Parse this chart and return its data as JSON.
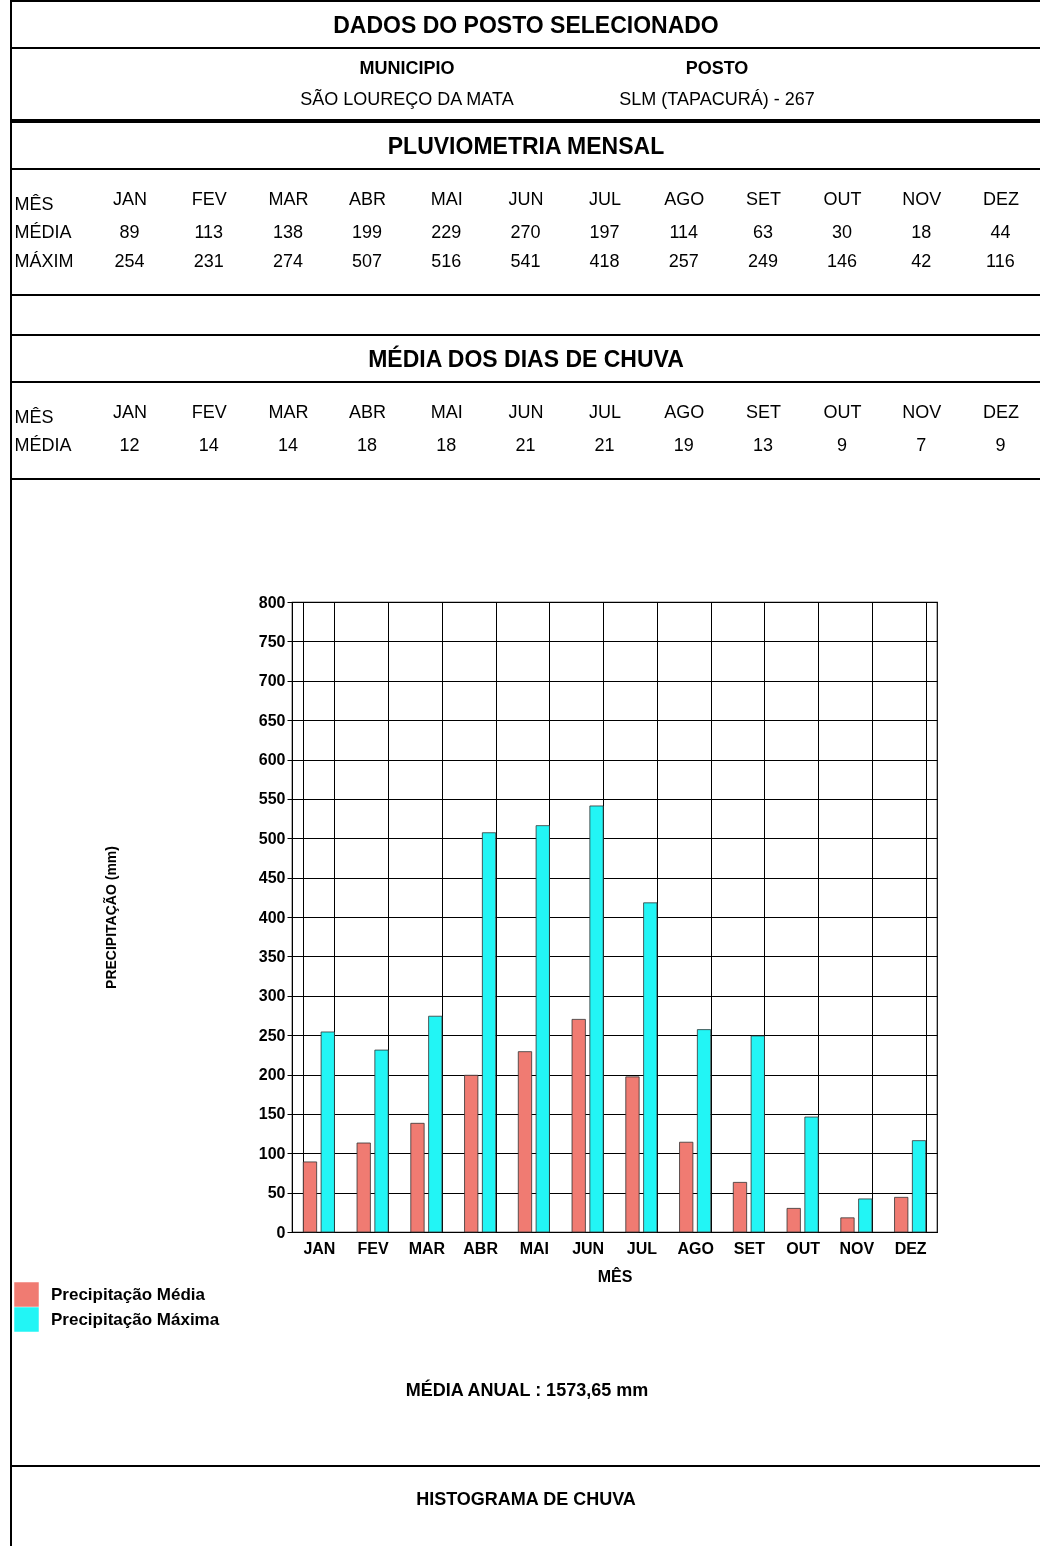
{
  "chart_data": [
    {
      "type": "other",
      "title": "DADOS DO POSTO SELECIONADO",
      "annotations": [
        "MUNICIPIO",
        "POSTO",
        "SÃO LOUREÇO DA MATA",
        "SLM (TAPACURÁ) - 267"
      ]
    },
    {
      "type": "other",
      "title": "PLUVIOMETRIA MENSAL",
      "xlabel": "MÊS",
      "categories": [
        "JAN",
        "FEV",
        "MAR",
        "ABR",
        "MAI",
        "JUN",
        "JUL",
        "AGO",
        "SET",
        "OUT",
        "NOV",
        "DEZ"
      ],
      "series": [
        {
          "name": "MÉDIA",
          "values": [
            89,
            113,
            138,
            199,
            229,
            270,
            197,
            114,
            63,
            30,
            18,
            44
          ]
        },
        {
          "name": "MÁXIM",
          "values": [
            254,
            231,
            274,
            507,
            516,
            541,
            418,
            257,
            249,
            146,
            42,
            116
          ]
        }
      ],
      "data_labels": true
    },
    {
      "type": "other",
      "title": "MÉDIA DOS DIAS DE CHUVA",
      "xlabel": "MÊS",
      "ylabel": "MÉDIA",
      "categories": [
        "JAN",
        "FEV",
        "MAR",
        "ABR",
        "MAI",
        "JUN",
        "JUL",
        "AGO",
        "SET",
        "OUT",
        "NOV",
        "DEZ"
      ],
      "values": [
        12,
        14,
        14,
        18,
        18,
        21,
        21,
        19,
        13,
        9,
        7,
        9
      ],
      "data_labels": true
    },
    {
      "type": "bar",
      "categories": [
        "JAN",
        "FEV",
        "MAR",
        "ABR",
        "MAI",
        "JUN",
        "JUL",
        "AGO",
        "SET",
        "OUT",
        "NOV",
        "DEZ"
      ],
      "series": [
        {
          "name": "Precipitação Média",
          "color": "#f07b72",
          "values": [
            89,
            113,
            138,
            199,
            229,
            270,
            197,
            114,
            63,
            30,
            18,
            44
          ]
        },
        {
          "name": "Precipitação Máxima",
          "color": "#22f5f5",
          "values": [
            254,
            231,
            274,
            507,
            516,
            541,
            418,
            257,
            249,
            146,
            42,
            116
          ]
        }
      ],
      "xlabel": "MÊS",
      "ylabel": "PRECIPITAÇÃO (mm)",
      "ylim": [
        0,
        800
      ],
      "yticks": [
        0,
        50,
        100,
        150,
        200,
        250,
        300,
        350,
        400,
        450,
        500,
        550,
        600,
        650,
        700,
        750,
        800
      ],
      "grid": true,
      "legend": "bottom left",
      "annotations": [
        "MÉDIA  ANUAL : 1573,65 mm",
        "HISTOGRAMA DE CHUVA"
      ]
    }
  ]
}
